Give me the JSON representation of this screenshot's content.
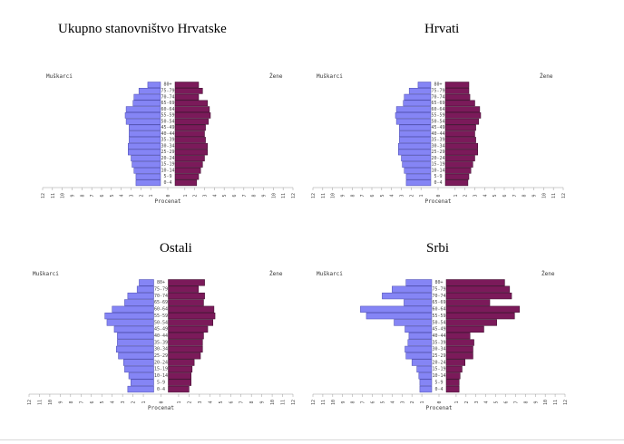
{
  "chart_data": [
    {
      "type": "bar",
      "title": "Ukupno stanovništvo Hrvatske",
      "xlabel": "Procenat",
      "male_label": "Muškarci",
      "female_label": "Žene",
      "categories": [
        "0-4",
        "5-9",
        "10-14",
        "15-19",
        "20-24",
        "25-29",
        "30-34",
        "35-39",
        "40-44",
        "45-49",
        "50-54",
        "55-59",
        "60-64",
        "65-69",
        "70-74",
        "75-79",
        "80+"
      ],
      "series": [
        {
          "name": "Muškarci",
          "values": [
            2.5,
            2.5,
            2.7,
            2.9,
            3.0,
            3.3,
            3.3,
            3.2,
            3.2,
            3.2,
            3.5,
            3.6,
            3.5,
            2.8,
            2.7,
            2.2,
            1.3
          ]
        },
        {
          "name": "Žene",
          "values": [
            2.2,
            2.4,
            2.6,
            2.8,
            3.0,
            3.3,
            3.3,
            3.1,
            3.0,
            3.1,
            3.4,
            3.6,
            3.5,
            3.3,
            2.4,
            2.8,
            2.4
          ]
        }
      ],
      "xlim": [
        -12,
        12
      ],
      "xticks": [
        12,
        11,
        10,
        9,
        8,
        7,
        6,
        5,
        4,
        3,
        2,
        1,
        0,
        1,
        2,
        3,
        4,
        5,
        6,
        7,
        8,
        9,
        10,
        11,
        12
      ]
    },
    {
      "type": "bar",
      "title": "Hrvati",
      "xlabel": "Procenat",
      "male_label": "Muškarci",
      "female_label": "Žene",
      "categories": [
        "0-4",
        "5-9",
        "10-14",
        "15-19",
        "20-24",
        "25-29",
        "30-34",
        "35-39",
        "40-44",
        "45-49",
        "50-54",
        "55-59",
        "60-64",
        "65-69",
        "70-74",
        "75-79",
        "80+"
      ],
      "series": [
        {
          "name": "Muškarci",
          "values": [
            2.5,
            2.5,
            2.7,
            2.9,
            3.0,
            3.3,
            3.3,
            3.2,
            3.2,
            3.2,
            3.5,
            3.6,
            3.5,
            2.8,
            2.7,
            2.2,
            1.3
          ]
        },
        {
          "name": "Žene",
          "values": [
            2.3,
            2.4,
            2.6,
            2.8,
            3.0,
            3.3,
            3.3,
            3.1,
            3.0,
            3.1,
            3.4,
            3.6,
            3.5,
            3.0,
            2.5,
            2.4,
            2.4
          ]
        }
      ],
      "xlim": [
        -12,
        12
      ],
      "xticks": [
        12,
        11,
        10,
        9,
        8,
        7,
        6,
        5,
        4,
        3,
        2,
        1,
        0,
        1,
        2,
        3,
        4,
        5,
        6,
        7,
        8,
        9,
        10,
        11,
        12
      ]
    },
    {
      "type": "bar",
      "title": "Ostali",
      "xlabel": "Procenat",
      "male_label": "Muškarci",
      "female_label": "Žene",
      "categories": [
        "0-4",
        "5-9",
        "10-14",
        "15-19",
        "20-24",
        "25-29",
        "30-34",
        "35-39",
        "40-44",
        "45-49",
        "50-54",
        "55-59",
        "60-64",
        "65-69",
        "70-74",
        "75-79",
        "80+"
      ],
      "series": [
        {
          "name": "Muškarci",
          "values": [
            2.5,
            2.2,
            2.4,
            2.8,
            2.9,
            3.4,
            3.6,
            3.5,
            3.5,
            3.8,
            4.5,
            4.7,
            4.0,
            2.8,
            2.5,
            1.6,
            1.4
          ]
        },
        {
          "name": "Žene",
          "values": [
            2.0,
            2.2,
            2.2,
            2.3,
            2.5,
            3.1,
            3.3,
            3.3,
            3.4,
            3.8,
            4.3,
            4.5,
            4.4,
            3.4,
            3.5,
            2.9,
            3.5
          ]
        }
      ],
      "xlim": [
        -12,
        12
      ],
      "xticks": [
        12,
        11,
        10,
        9,
        8,
        7,
        6,
        5,
        4,
        3,
        2,
        1,
        0,
        1,
        2,
        3,
        4,
        5,
        6,
        7,
        8,
        9,
        10,
        11,
        12
      ]
    },
    {
      "type": "bar",
      "title": "Srbi",
      "xlabel": "Procenat",
      "male_label": "Muškarci",
      "female_label": "Žene",
      "categories": [
        "0-4",
        "5-9",
        "10-14",
        "15-19",
        "20-24",
        "25-29",
        "30-34",
        "35-39",
        "40-44",
        "45-49",
        "50-54",
        "55-59",
        "60-64",
        "65-69",
        "70-74",
        "75-79",
        "80+"
      ],
      "series": [
        {
          "name": "Muškarci",
          "values": [
            1.2,
            1.2,
            1.3,
            1.5,
            2.0,
            2.6,
            2.7,
            2.4,
            2.3,
            2.7,
            3.8,
            6.6,
            7.2,
            2.8,
            5.0,
            4.0,
            2.6
          ]
        },
        {
          "name": "Žene",
          "values": [
            1.3,
            1.3,
            1.4,
            1.6,
            1.9,
            2.7,
            2.7,
            2.8,
            2.4,
            3.8,
            5.1,
            6.9,
            7.4,
            4.4,
            6.6,
            6.4,
            5.9
          ]
        }
      ],
      "xlim": [
        -12,
        12
      ],
      "xticks": [
        12,
        11,
        10,
        9,
        8,
        7,
        6,
        5,
        4,
        3,
        2,
        1,
        0,
        1,
        2,
        3,
        4,
        5,
        6,
        7,
        8,
        9,
        10,
        11,
        12
      ]
    }
  ],
  "colors": {
    "male": "#8585f5",
    "female": "#7b1a5a",
    "male_stroke": "#4a4ab0",
    "female_stroke": "#3a0a2a"
  }
}
